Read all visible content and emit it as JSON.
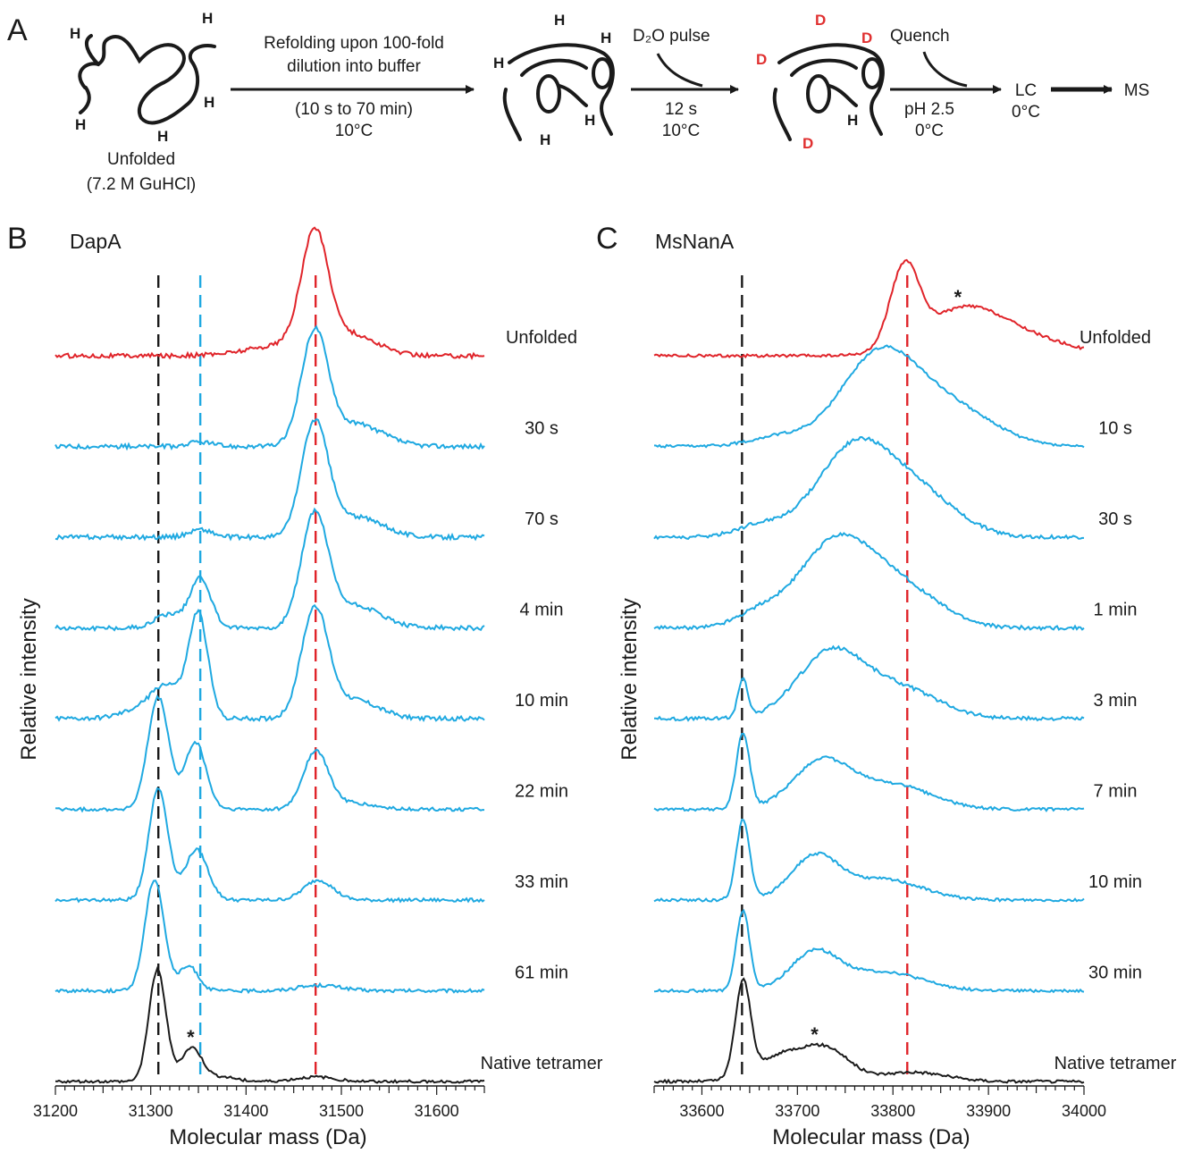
{
  "panels": {
    "a": "A",
    "b": "B",
    "c": "C"
  },
  "scheme": {
    "unfolded_label": "Unfolded",
    "unfolded_condition": "(7.2 M GuHCl)",
    "step1_line1": "Refolding upon 100-fold",
    "step1_line2": "dilution into buffer",
    "step1_line3": "(10 s to 70 min)",
    "step1_line4": "10°C",
    "h_label": "H",
    "d_label": "D",
    "step2_pulse": "D₂O pulse",
    "step2_time": "12 s",
    "step2_temp": "10°C",
    "step3_quench": "Quench",
    "step3_ph": "pH 2.5",
    "step3_temp": "0°C",
    "lc_label": "LC",
    "lc_temp": "0°C",
    "ms_label": "MS"
  },
  "colors": {
    "unfolded": "#e0242a",
    "refolding": "#1fa9e1",
    "native": "#1a1a1a",
    "native_ref_line": "#1a1a1a",
    "intermediate_ref_line": "#1fa9e1",
    "unfolded_ref_line": "#e0242a"
  },
  "chart_data": [
    {
      "type": "line",
      "title": "DapA",
      "xlabel": "Molecular mass (Da)",
      "ylabel": "Relative intensity",
      "xlim": [
        31200,
        31650
      ],
      "xticks": [
        "31200",
        "31300",
        "31400",
        "31500",
        "31600"
      ],
      "x_tick_values": [
        31200,
        31300,
        31400,
        31500,
        31600
      ],
      "grid": false,
      "reference_lines": [
        {
          "x": 31308,
          "color": "black"
        },
        {
          "x": 31352,
          "color": "blue"
        },
        {
          "x": 31473,
          "color": "red"
        }
      ],
      "series": [
        {
          "name": "Unfolded",
          "color": "red",
          "peaks": [
            [
              31472,
              1.0,
              14
            ],
            [
              31510,
              0.17,
              28
            ],
            [
              31445,
              0.1,
              40
            ]
          ],
          "noise": 0.02
        },
        {
          "name": "30 s",
          "color": "blue",
          "peaks": [
            [
              31472,
              1.0,
              14
            ],
            [
              31515,
              0.2,
              28
            ],
            [
              31352,
              0.04,
              12
            ]
          ],
          "noise": 0.02
        },
        {
          "name": "70 s",
          "color": "blue",
          "peaks": [
            [
              31472,
              1.0,
              14
            ],
            [
              31515,
              0.18,
              28
            ],
            [
              31352,
              0.07,
              12
            ]
          ],
          "noise": 0.02
        },
        {
          "name": "4 min",
          "color": "blue",
          "peaks": [
            [
              31472,
              1.0,
              14
            ],
            [
              31515,
              0.2,
              26
            ],
            [
              31352,
              0.45,
              11
            ],
            [
              31318,
              0.12,
              14
            ]
          ],
          "noise": 0.02
        },
        {
          "name": "10 min",
          "color": "blue",
          "peaks": [
            [
              31472,
              0.96,
              14
            ],
            [
              31512,
              0.17,
              26
            ],
            [
              31350,
              0.92,
              10
            ],
            [
              31318,
              0.28,
              16
            ],
            [
              31290,
              0.08,
              20
            ]
          ],
          "noise": 0.02
        },
        {
          "name": "22 min",
          "color": "blue",
          "peaks": [
            [
              31308,
              1.0,
              11
            ],
            [
              31347,
              0.6,
              11
            ],
            [
              31473,
              0.5,
              13
            ],
            [
              31505,
              0.06,
              25
            ]
          ],
          "noise": 0.015
        },
        {
          "name": "33 min",
          "color": "blue",
          "peaks": [
            [
              31308,
              1.0,
              10
            ],
            [
              31348,
              0.45,
              12
            ],
            [
              31476,
              0.18,
              15
            ]
          ],
          "noise": 0.015
        },
        {
          "name": "61 min",
          "color": "blue",
          "peaks": [
            [
              31304,
              1.0,
              10
            ],
            [
              31340,
              0.22,
              10
            ],
            [
              31478,
              0.05,
              22
            ]
          ],
          "noise": 0.015
        },
        {
          "name": "Native tetramer",
          "color": "black",
          "peaks": [
            [
              31307,
              1.0,
              9
            ],
            [
              31343,
              0.3,
              11
            ],
            [
              31375,
              0.04,
              15
            ],
            [
              31473,
              0.04,
              20
            ]
          ],
          "noise": 0.012,
          "annotation": "*",
          "annotation_x": 31342
        }
      ]
    },
    {
      "type": "line",
      "title": "MsNanA",
      "xlabel": "Molecular mass (Da)",
      "ylabel": "Relative intensity",
      "xlim": [
        33550,
        34000
      ],
      "xticks": [
        "33600",
        "33700",
        "33800",
        "33900",
        "34000"
      ],
      "x_tick_values": [
        33600,
        33700,
        33800,
        33900,
        34000
      ],
      "grid": false,
      "reference_lines": [
        {
          "x": 33642,
          "color": "black"
        },
        {
          "x": 33815,
          "color": "red"
        }
      ],
      "series": [
        {
          "name": "Unfolded",
          "color": "red",
          "peaks": [
            [
              33812,
              0.85,
              15
            ],
            [
              33870,
              0.42,
              40
            ],
            [
              33930,
              0.2,
              50
            ]
          ],
          "noise": 0.015,
          "annotation": "*",
          "annotation_x": 33868
        },
        {
          "name": "10 s",
          "color": "blue",
          "peaks": [
            [
              33785,
              0.95,
              40
            ],
            [
              33860,
              0.4,
              45
            ],
            [
              33680,
              0.1,
              30
            ]
          ],
          "noise": 0.015
        },
        {
          "name": "30 s",
          "color": "blue",
          "peaks": [
            [
              33760,
              0.95,
              40
            ],
            [
              33830,
              0.4,
              40
            ],
            [
              33660,
              0.12,
              25
            ]
          ],
          "noise": 0.02
        },
        {
          "name": "1 min",
          "color": "blue",
          "peaks": [
            [
              33740,
              0.9,
              38
            ],
            [
              33810,
              0.4,
              40
            ],
            [
              33660,
              0.15,
              25
            ]
          ],
          "noise": 0.02
        },
        {
          "name": "3 min",
          "color": "blue",
          "peaks": [
            [
              33643,
              0.42,
              5
            ],
            [
              33735,
              0.7,
              35
            ],
            [
              33810,
              0.3,
              40
            ]
          ],
          "noise": 0.02
        },
        {
          "name": "7 min",
          "color": "blue",
          "peaks": [
            [
              33643,
              0.8,
              7
            ],
            [
              33725,
              0.5,
              30
            ],
            [
              33800,
              0.26,
              40
            ]
          ],
          "noise": 0.015
        },
        {
          "name": "10 min",
          "color": "blue",
          "peaks": [
            [
              33643,
              0.85,
              7
            ],
            [
              33718,
              0.45,
              25
            ],
            [
              33790,
              0.22,
              40
            ]
          ],
          "noise": 0.015
        },
        {
          "name": "30 min",
          "color": "blue",
          "peaks": [
            [
              33643,
              0.85,
              7
            ],
            [
              33718,
              0.4,
              25
            ],
            [
              33790,
              0.2,
              40
            ]
          ],
          "noise": 0.015
        },
        {
          "name": "Native tetramer",
          "color": "black",
          "peaks": [
            [
              33643,
              1.0,
              8
            ],
            [
              33690,
              0.3,
              30
            ],
            [
              33735,
              0.26,
              22
            ],
            [
              33820,
              0.1,
              35
            ]
          ],
          "noise": 0.015,
          "annotation": "*",
          "annotation_x": 33718
        }
      ]
    }
  ]
}
